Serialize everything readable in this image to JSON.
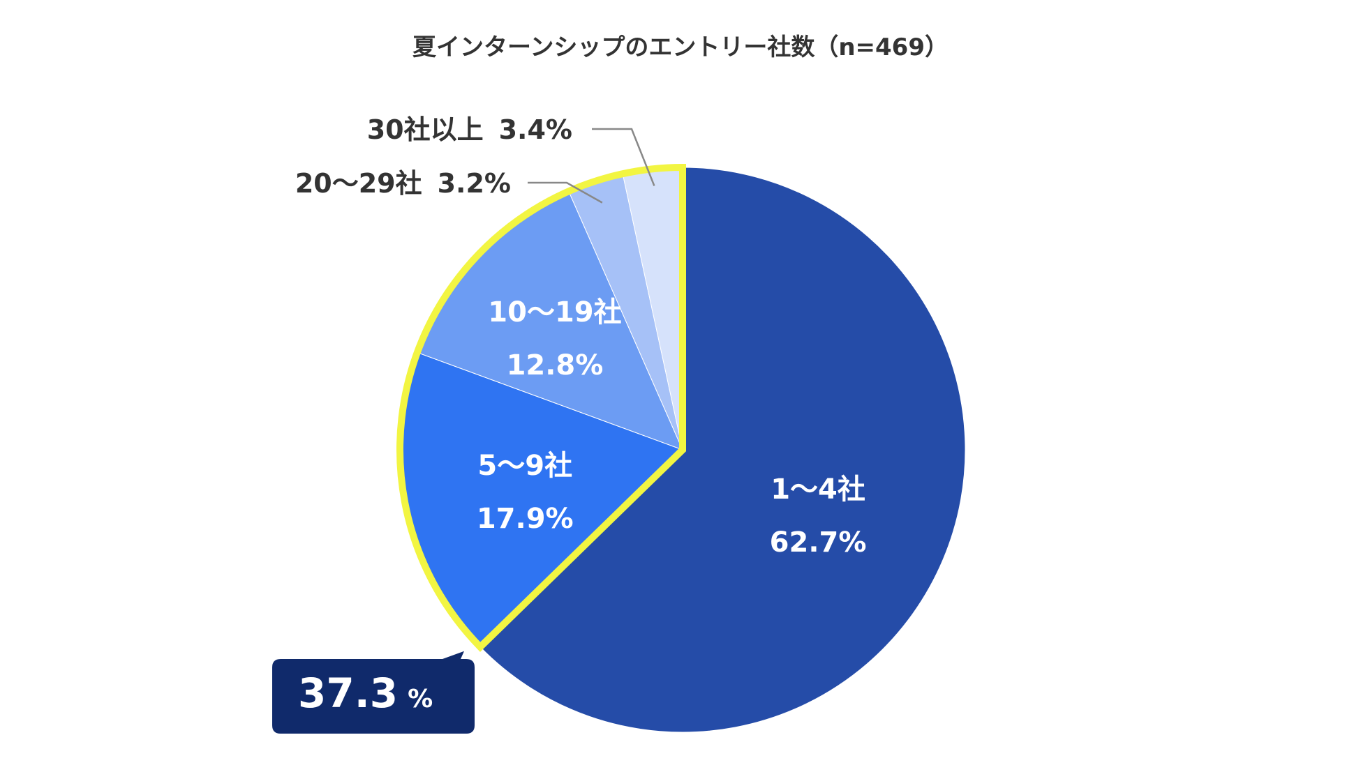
{
  "chart_data": {
    "type": "pie",
    "title": "夏インターンシップのエントリー社数（n=469）",
    "slices": [
      {
        "label": "1〜4社",
        "value": 62.7,
        "value_label": "62.7%",
        "color": "#254CA8"
      },
      {
        "label": "5〜9社",
        "value": 17.9,
        "value_label": "17.9%",
        "color": "#2F74F2"
      },
      {
        "label": "10〜19社",
        "value": 12.8,
        "value_label": "12.8%",
        "color": "#6C9CF3"
      },
      {
        "label": "20〜29社",
        "value": 3.2,
        "value_label": "3.2%",
        "color": "#A6C1F7"
      },
      {
        "label": "30社以上",
        "value": 3.4,
        "value_label": "3.4%",
        "color": "#D6E2FB"
      }
    ],
    "highlight": {
      "value_label": "37.3",
      "unit": "%",
      "outline_color": "#F2F542",
      "callout_color": "#102A6B"
    },
    "leader_line_color": "#888888"
  }
}
